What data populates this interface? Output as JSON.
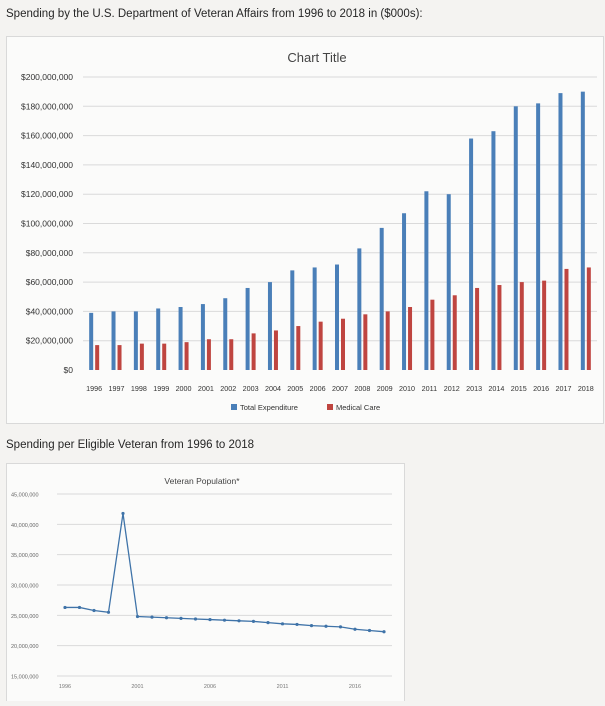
{
  "headings": {
    "main": "Spending by the U.S. Department of Veteran Affairs from 1996 to 2018 in ($000s):",
    "second": "Spending per Eligible Veteran from 1996 to 2018"
  },
  "colors": {
    "total": "#4a7fb8",
    "medical": "#bf4540",
    "line": "#3f73a8",
    "grid": "#dadada",
    "background": "#f4f3f1"
  },
  "chart_data": [
    {
      "type": "bar",
      "title": "Chart Title",
      "categories": [
        "1996",
        "1997",
        "1998",
        "1999",
        "2000",
        "2001",
        "2002",
        "2003",
        "2004",
        "2005",
        "2006",
        "2007",
        "2008",
        "2009",
        "2010",
        "2011",
        "2012",
        "2013",
        "2014",
        "2015",
        "2016",
        "2017",
        "2018"
      ],
      "series": [
        {
          "name": "Total Expenditure",
          "values": [
            39000000,
            40000000,
            40000000,
            42000000,
            43000000,
            45000000,
            49000000,
            56000000,
            60000000,
            68000000,
            70000000,
            72000000,
            83000000,
            97000000,
            107000000,
            122000000,
            120000000,
            158000000,
            163000000,
            180000000,
            182000000,
            189000000,
            190000000
          ]
        },
        {
          "name": "Medical Care",
          "values": [
            17000000,
            17000000,
            18000000,
            18000000,
            19000000,
            21000000,
            21000000,
            25000000,
            27000000,
            30000000,
            33000000,
            35000000,
            38000000,
            40000000,
            43000000,
            48000000,
            51000000,
            56000000,
            58000000,
            60000000,
            61000000,
            69000000,
            70000000
          ]
        }
      ],
      "ylim": [
        0,
        200000000
      ],
      "yticks": [
        "$0",
        "$20,000,000",
        "$40,000,000",
        "$60,000,000",
        "$80,000,000",
        "$100,000,000",
        "$120,000,000",
        "$140,000,000",
        "$160,000,000",
        "$180,000,000",
        "$200,000,000"
      ],
      "grid": true,
      "legend": "bottom"
    },
    {
      "type": "line",
      "title": "Veteran Population*",
      "x": [
        1996,
        1997,
        1998,
        1999,
        2000,
        2001,
        2002,
        2003,
        2004,
        2005,
        2006,
        2007,
        2008,
        2009,
        2010,
        2011,
        2012,
        2013,
        2014,
        2015,
        2016,
        2017,
        2018
      ],
      "series": [
        {
          "name": "",
          "values": [
            26300000,
            26300000,
            25800000,
            25500000,
            41800000,
            24800000,
            24700000,
            24600000,
            24500000,
            24400000,
            24300000,
            24200000,
            24100000,
            24000000,
            23800000,
            23600000,
            23500000,
            23300000,
            23200000,
            23100000,
            22700000,
            22500000,
            22300000
          ]
        }
      ],
      "ylim": [
        15000000,
        45000000
      ],
      "yticks": [
        "15,000,000",
        "20,000,000",
        "25,000,000",
        "30,000,000",
        "35,000,000",
        "40,000,000",
        "45,000,000"
      ],
      "xticks": [
        "1996",
        "2001",
        "2006",
        "2011",
        "2016"
      ],
      "grid": true
    }
  ]
}
